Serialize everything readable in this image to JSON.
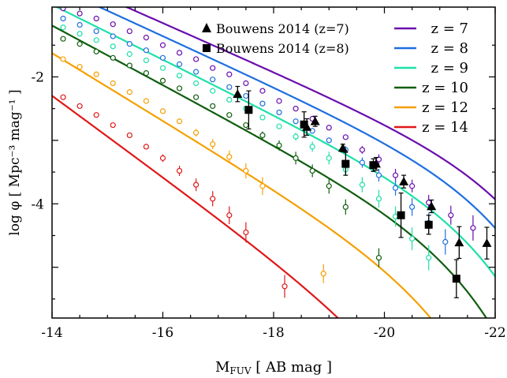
{
  "chart_data": {
    "type": "line",
    "xlabel": "M",
    "xlabel_sub": "FUV",
    "xlabel_suffix": "[ AB mag ]",
    "ylabel": "log φ [ Mpc⁻³ mag⁻¹ ]",
    "xlim": [
      -14,
      -22
    ],
    "ylim": [
      -5.8,
      -0.9
    ],
    "xticks": [
      -14,
      -16,
      -18,
      -20,
      -22
    ],
    "xtick_labels": [
      "-14",
      "-16",
      "-18",
      "-20",
      "-22"
    ],
    "yticks": [
      -2,
      -4
    ],
    "ytick_labels": [
      "-2",
      "-4"
    ],
    "grid": false,
    "legend_position": "top-right",
    "series": [
      {
        "name": "z = 7",
        "color": "#6a0dad",
        "phi_star": -3.38,
        "M_star": -21.9,
        "alpha": -1.96,
        "x": [
          -14.2,
          -14.5,
          -14.8,
          -15.1,
          -15.4,
          -15.7,
          -16.0,
          -16.3,
          -16.6,
          -16.9,
          -17.2,
          -17.5,
          -17.8,
          -18.1,
          -18.4,
          -18.7,
          -19.0,
          -19.3,
          -19.6,
          -19.9,
          -20.2,
          -20.5,
          -20.8,
          -21.2,
          -21.6
        ],
        "y": [
          -0.92,
          -1.0,
          -1.08,
          -1.17,
          -1.28,
          -1.38,
          -1.5,
          -1.62,
          -1.72,
          -1.86,
          -1.96,
          -2.1,
          -2.22,
          -2.38,
          -2.5,
          -2.66,
          -2.8,
          -2.95,
          -3.15,
          -3.3,
          -3.55,
          -3.72,
          -3.98,
          -4.18,
          -4.38
        ],
        "err": [
          0,
          0,
          0,
          0,
          0,
          0,
          0,
          0,
          0,
          0,
          0,
          0,
          0,
          0,
          0,
          0,
          0,
          0,
          0.06,
          0.08,
          0.1,
          0.1,
          0.12,
          0.15,
          0.2
        ]
      },
      {
        "name": "z = 8",
        "color": "#1e6fe0",
        "phi_star": -3.56,
        "M_star": -21.6,
        "alpha": -2.0,
        "x": [
          -14.2,
          -14.5,
          -14.8,
          -15.1,
          -15.4,
          -15.7,
          -16.0,
          -16.3,
          -16.6,
          -16.9,
          -17.2,
          -17.5,
          -17.8,
          -18.1,
          -18.4,
          -18.7,
          -19.0,
          -19.3,
          -19.6,
          -19.9,
          -20.2,
          -20.5,
          -20.8,
          -21.1
        ],
        "y": [
          -1.08,
          -1.18,
          -1.28,
          -1.36,
          -1.48,
          -1.58,
          -1.7,
          -1.8,
          -1.92,
          -2.04,
          -2.16,
          -2.3,
          -2.42,
          -2.56,
          -2.7,
          -2.85,
          -3.0,
          -3.15,
          -3.35,
          -3.55,
          -3.75,
          -4.05,
          -4.3,
          -4.6
        ],
        "err": [
          0,
          0,
          0,
          0,
          0,
          0,
          0,
          0,
          0,
          0,
          0,
          0,
          0,
          0,
          0,
          0,
          0,
          0.06,
          0.08,
          0.1,
          0.12,
          0.14,
          0.16,
          0.2
        ]
      },
      {
        "name": "z = 9",
        "color": "#1fe0a8",
        "phi_star": -3.98,
        "M_star": -21.3,
        "alpha": -2.08,
        "x": [
          -14.2,
          -14.5,
          -14.8,
          -15.1,
          -15.4,
          -15.7,
          -16.0,
          -16.3,
          -16.6,
          -16.9,
          -17.2,
          -17.5,
          -17.8,
          -18.1,
          -18.4,
          -18.7,
          -19.0,
          -19.3,
          -19.6,
          -19.9,
          -20.2,
          -20.5,
          -20.8
        ],
        "y": [
          -1.22,
          -1.32,
          -1.42,
          -1.52,
          -1.64,
          -1.74,
          -1.86,
          -1.98,
          -2.1,
          -2.22,
          -2.36,
          -2.5,
          -2.64,
          -2.78,
          -2.94,
          -3.1,
          -3.28,
          -3.46,
          -3.7,
          -3.92,
          -4.2,
          -4.55,
          -4.85
        ],
        "err": [
          0,
          0,
          0,
          0,
          0,
          0,
          0,
          0,
          0,
          0,
          0,
          0,
          0,
          0,
          0.06,
          0.08,
          0.1,
          0.1,
          0.12,
          0.14,
          0.16,
          0.18,
          0.2
        ]
      },
      {
        "name": "z = 10",
        "color": "#0f5e0f",
        "phi_star": -4.43,
        "M_star": -21.0,
        "alpha": -2.17,
        "x": [
          -14.2,
          -14.5,
          -14.8,
          -15.1,
          -15.4,
          -15.7,
          -16.0,
          -16.3,
          -16.6,
          -16.9,
          -17.2,
          -17.5,
          -17.8,
          -18.1,
          -18.4,
          -18.7,
          -19.0,
          -19.3,
          -19.9
        ],
        "y": [
          -1.4,
          -1.48,
          -1.6,
          -1.7,
          -1.82,
          -1.94,
          -2.06,
          -2.18,
          -2.32,
          -2.46,
          -2.6,
          -2.76,
          -2.92,
          -3.08,
          -3.28,
          -3.48,
          -3.72,
          -4.05,
          -4.85
        ],
        "err": [
          0,
          0,
          0,
          0,
          0,
          0,
          0,
          0,
          0,
          0,
          0,
          0,
          0.06,
          0.08,
          0.1,
          0.1,
          0.12,
          0.12,
          0.15
        ]
      },
      {
        "name": "z = 12",
        "color": "#f5a000",
        "phi_star": -5.1,
        "M_star": -20.6,
        "alpha": -2.33,
        "x": [
          -14.2,
          -14.5,
          -14.8,
          -15.1,
          -15.4,
          -15.7,
          -16.0,
          -16.3,
          -16.6,
          -16.9,
          -17.2,
          -17.5,
          -17.8,
          -18.9
        ],
        "y": [
          -1.72,
          -1.84,
          -1.96,
          -2.1,
          -2.24,
          -2.38,
          -2.54,
          -2.7,
          -2.88,
          -3.06,
          -3.26,
          -3.48,
          -3.72,
          -5.1
        ],
        "err": [
          0,
          0,
          0,
          0,
          0,
          0,
          0,
          0,
          0.06,
          0.08,
          0.1,
          0.12,
          0.14,
          0.15
        ]
      },
      {
        "name": "z = 14",
        "color": "#e01818",
        "phi_star": -6.1,
        "M_star": -20.0,
        "alpha": -2.6,
        "x": [
          -14.2,
          -14.5,
          -14.8,
          -15.1,
          -15.4,
          -15.7,
          -16.0,
          -16.3,
          -16.6,
          -16.9,
          -17.2,
          -17.5,
          -18.2
        ],
        "y": [
          -2.32,
          -2.46,
          -2.6,
          -2.76,
          -2.92,
          -3.1,
          -3.28,
          -3.48,
          -3.7,
          -3.92,
          -4.18,
          -4.45,
          -5.3
        ],
        "err": [
          0,
          0,
          0,
          0,
          0,
          0,
          0.06,
          0.08,
          0.1,
          0.12,
          0.14,
          0.16,
          0.18
        ]
      }
    ],
    "observations": [
      {
        "name": "Bouwens 2014 (z=7)",
        "marker": "triangle",
        "x": [
          -17.35,
          -18.6,
          -18.75,
          -19.25,
          -19.85,
          -20.35,
          -20.85,
          -21.35,
          -21.85
        ],
        "y": [
          -2.27,
          -2.79,
          -2.7,
          -3.12,
          -3.37,
          -3.65,
          -4.04,
          -4.61,
          -4.62
        ],
        "err": [
          0.12,
          0.13,
          0.08,
          0.06,
          0.1,
          0.1,
          0.1,
          0.25,
          0.25
        ]
      },
      {
        "name": "Bouwens 2014 (z=8)",
        "marker": "square",
        "x": [
          -17.55,
          -18.55,
          -19.3,
          -19.8,
          -20.3,
          -20.8,
          -21.3
        ],
        "y": [
          -2.52,
          -2.75,
          -3.37,
          -3.39,
          -4.18,
          -4.33,
          -5.18
        ],
        "err": [
          0.3,
          0.2,
          0.18,
          0.1,
          0.35,
          0.15,
          0.3
        ]
      }
    ]
  }
}
